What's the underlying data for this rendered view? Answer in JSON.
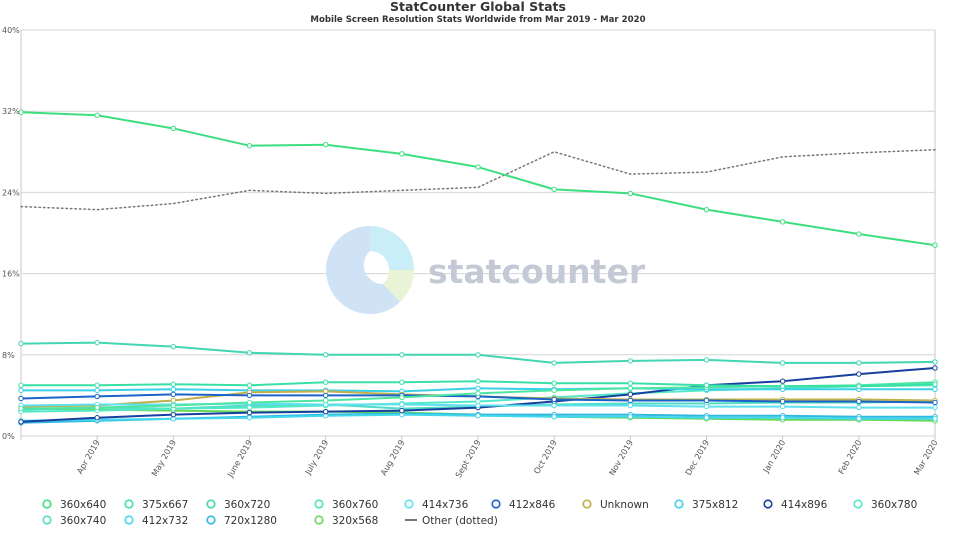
{
  "chart_data": {
    "type": "line",
    "title": "StatCounter Global Stats",
    "subtitle": "Mobile Screen Resolution Stats Worldwide from Mar 2019 - Mar 2020",
    "watermark": "statcounter",
    "categories": [
      "Mar 2019",
      "Apr 2019",
      "May 2019",
      "June 2019",
      "July 2019",
      "Aug 2019",
      "Sept 2019",
      "Oct 2019",
      "Nov 2019",
      "Dec 2019",
      "Jan 2020",
      "Feb 2020",
      "Mar 2020"
    ],
    "x_tick_labels": [
      "Apr 2019",
      "May 2019",
      "June 2019",
      "July 2019",
      "Aug 2019",
      "Sept 2019",
      "Oct 2019",
      "Nov 2019",
      "Dec 2019",
      "Jan 2020",
      "Feb 2020",
      "Mar 2020"
    ],
    "y_ticks": [
      "0%",
      "8%",
      "16%",
      "24%",
      "32%",
      "40%"
    ],
    "ylim": [
      0,
      40
    ],
    "grid": true,
    "legend_position": "bottom",
    "series": [
      {
        "name": "360x640",
        "color": "#3dde80",
        "values": [
          31.9,
          31.6,
          30.3,
          28.6,
          28.7,
          27.8,
          26.5,
          24.3,
          23.9,
          22.3,
          21.1,
          19.9,
          18.8
        ]
      },
      {
        "name": "375x667",
        "color": "#39e0a6",
        "values": [
          5.0,
          5.0,
          5.1,
          5.0,
          5.3,
          5.3,
          5.4,
          5.2,
          5.2,
          5.0,
          4.9,
          4.9,
          5.1
        ]
      },
      {
        "name": "360x720",
        "color": "#42d6b2",
        "values": [
          9.1,
          9.2,
          8.8,
          8.2,
          8.0,
          8.0,
          8.0,
          7.2,
          7.4,
          7.5,
          7.2,
          7.2,
          7.3
        ]
      },
      {
        "name": "360x760",
        "color": "#4ce6a3",
        "values": [
          2.7,
          2.8,
          3.0,
          3.3,
          3.5,
          3.8,
          4.2,
          4.5,
          4.7,
          4.8,
          4.9,
          5.0,
          5.3
        ]
      },
      {
        "name": "414x736",
        "color": "#5ee0ee",
        "values": [
          3.0,
          3.1,
          3.1,
          3.2,
          3.1,
          3.1,
          3.0,
          3.0,
          3.0,
          2.9,
          2.9,
          2.8,
          2.8
        ]
      },
      {
        "name": "412x846",
        "color": "#1b63c9",
        "values": [
          3.7,
          3.9,
          4.1,
          4.0,
          4.0,
          4.0,
          3.9,
          3.6,
          3.5,
          3.5,
          3.4,
          3.4,
          3.3
        ]
      },
      {
        "name": "Unknown",
        "color": "#c2b04c",
        "values": [
          2.9,
          3.0,
          3.5,
          4.3,
          4.4,
          4.1,
          3.9,
          3.7,
          3.6,
          3.6,
          3.6,
          3.6,
          3.5
        ]
      },
      {
        "name": "375x812",
        "color": "#3bd0e8",
        "values": [
          4.5,
          4.5,
          4.6,
          4.5,
          4.5,
          4.4,
          4.7,
          4.6,
          4.7,
          4.6,
          4.6,
          4.6,
          4.6
        ]
      },
      {
        "name": "414x896",
        "color": "#173f9e",
        "values": [
          1.4,
          1.8,
          2.1,
          2.3,
          2.4,
          2.5,
          2.8,
          3.4,
          4.1,
          5.0,
          5.4,
          6.1,
          6.7
        ]
      },
      {
        "name": "360x780",
        "color": "#52eac6",
        "values": [
          2.4,
          2.5,
          2.7,
          2.8,
          3.0,
          3.2,
          3.4,
          3.8,
          4.2,
          4.5,
          4.7,
          4.9,
          5.0
        ]
      },
      {
        "name": "360x740",
        "color": "#52dcc5",
        "values": [
          2.6,
          2.8,
          2.7,
          3.0,
          3.1,
          2.7,
          2.9,
          3.1,
          3.2,
          3.2,
          3.3,
          3.3,
          3.4
        ]
      },
      {
        "name": "412x732",
        "color": "#43d8ec",
        "values": [
          1.5,
          1.6,
          1.7,
          1.8,
          2.0,
          2.1,
          2.0,
          1.9,
          1.9,
          1.8,
          1.8,
          1.7,
          1.7
        ]
      },
      {
        "name": "720x1280",
        "color": "#2fb8e0",
        "values": [
          1.3,
          1.5,
          1.7,
          1.9,
          2.1,
          2.2,
          2.1,
          2.1,
          2.1,
          2.0,
          2.0,
          1.9,
          1.9
        ]
      },
      {
        "name": "320x568",
        "color": "#66d858",
        "values": [
          2.7,
          2.6,
          2.5,
          2.4,
          2.4,
          2.3,
          2.1,
          1.9,
          1.8,
          1.7,
          1.6,
          1.6,
          1.5
        ]
      },
      {
        "name": "Other (dotted)",
        "color": "#777777",
        "dotted": true,
        "values": [
          22.6,
          22.3,
          22.9,
          24.2,
          23.9,
          24.2,
          24.5,
          28.0,
          25.8,
          26.0,
          27.5,
          27.9,
          28.2
        ]
      }
    ]
  }
}
